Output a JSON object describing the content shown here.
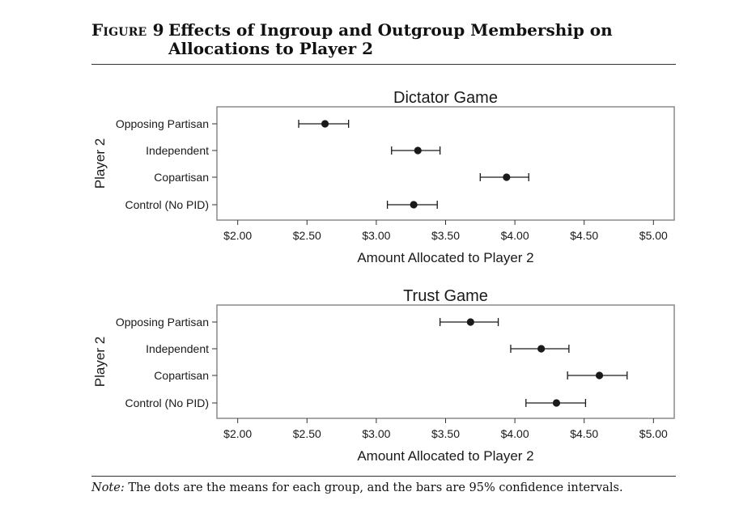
{
  "figure": {
    "label": "Figure 9",
    "title": "Effects of Ingroup and Outgroup Membership on Allocations to Player 2"
  },
  "note": {
    "label": "Note:",
    "text": "The dots are the means for each group, and the bars are 95% confidence intervals."
  },
  "chart_data": [
    {
      "type": "scatter",
      "title": "Dictator Game",
      "xlabel": "Amount Allocated to Player 2",
      "ylabel": "Player 2",
      "categories": [
        "Opposing Partisan",
        "Independent",
        "Copartisan",
        "Control (No PID)"
      ],
      "xlim": [
        1.85,
        5.15
      ],
      "xticks": [
        2.0,
        2.5,
        3.0,
        3.5,
        4.0,
        4.5,
        5.0
      ],
      "xtick_labels": [
        "$2.00",
        "$2.50",
        "$3.00",
        "$3.50",
        "$4.00",
        "$4.50",
        "$5.00"
      ],
      "means": [
        2.63,
        3.3,
        3.94,
        3.27
      ],
      "ci_low": [
        2.44,
        3.11,
        3.75,
        3.08
      ],
      "ci_high": [
        2.8,
        3.46,
        4.1,
        3.44
      ],
      "grid": false,
      "marker_color": "#1a1a1a"
    },
    {
      "type": "scatter",
      "title": "Trust Game",
      "xlabel": "Amount Allocated to Player 2",
      "ylabel": "Player 2",
      "categories": [
        "Opposing Partisan",
        "Independent",
        "Copartisan",
        "Control (No PID)"
      ],
      "xlim": [
        1.85,
        5.15
      ],
      "xticks": [
        2.0,
        2.5,
        3.0,
        3.5,
        4.0,
        4.5,
        5.0
      ],
      "xtick_labels": [
        "$2.00",
        "$2.50",
        "$3.00",
        "$3.50",
        "$4.00",
        "$4.50",
        "$5.00"
      ],
      "means": [
        3.68,
        4.19,
        4.61,
        4.3
      ],
      "ci_low": [
        3.46,
        3.97,
        4.38,
        4.08
      ],
      "ci_high": [
        3.88,
        4.39,
        4.81,
        4.51
      ],
      "grid": false,
      "marker_color": "#1a1a1a"
    }
  ]
}
